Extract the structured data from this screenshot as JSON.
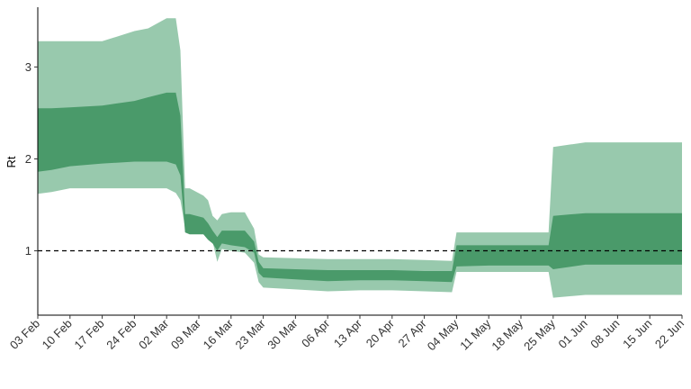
{
  "chart_data": {
    "type": "area",
    "title": "",
    "xlabel": "",
    "ylabel": "Rt",
    "ylim": [
      0.3,
      3.65
    ],
    "xlim": [
      "2020-02-03",
      "2020-06-22"
    ],
    "grid": false,
    "legend": "none",
    "y_ticks": [
      1,
      2,
      3
    ],
    "x_ticks": [
      "03 Feb",
      "10 Feb",
      "17 Feb",
      "24 Feb",
      "02 Mar",
      "09 Mar",
      "16 Mar",
      "23 Mar",
      "30 Mar",
      "06 Apr",
      "13 Apr",
      "20 Apr",
      "27 Apr",
      "04 May",
      "11 May",
      "18 May",
      "25 May",
      "01 Jun",
      "08 Jun",
      "15 Jun",
      "22 Jun"
    ],
    "x_tick_dates": [
      "2020-02-03",
      "2020-02-10",
      "2020-02-17",
      "2020-02-24",
      "2020-03-02",
      "2020-03-09",
      "2020-03-16",
      "2020-03-23",
      "2020-03-30",
      "2020-04-06",
      "2020-04-13",
      "2020-04-20",
      "2020-04-27",
      "2020-05-04",
      "2020-05-11",
      "2020-05-18",
      "2020-05-25",
      "2020-06-01",
      "2020-06-08",
      "2020-06-15",
      "2020-06-22"
    ],
    "reference_line": {
      "y": 1,
      "style": "dashed",
      "color": "#000000"
    },
    "colors": {
      "outer_band": "#98c9ad",
      "inner_band": "#4a9a6a"
    },
    "x": [
      "2020-02-03",
      "2020-02-06",
      "2020-02-10",
      "2020-02-17",
      "2020-02-24",
      "2020-02-27",
      "2020-03-02",
      "2020-03-04",
      "2020-03-05",
      "2020-03-06",
      "2020-03-07",
      "2020-03-10",
      "2020-03-11",
      "2020-03-12",
      "2020-03-13",
      "2020-03-14",
      "2020-03-16",
      "2020-03-19",
      "2020-03-21",
      "2020-03-22",
      "2020-03-23",
      "2020-03-30",
      "2020-04-06",
      "2020-04-13",
      "2020-04-20",
      "2020-04-27",
      "2020-05-03",
      "2020-05-04",
      "2020-05-11",
      "2020-05-18",
      "2020-05-24",
      "2020-05-25",
      "2020-06-01",
      "2020-06-08",
      "2020-06-15",
      "2020-06-22"
    ],
    "outer_lower": [
      1.62,
      1.64,
      1.68,
      1.68,
      1.68,
      1.68,
      1.68,
      1.63,
      1.55,
      1.25,
      1.22,
      1.22,
      1.15,
      1.1,
      0.88,
      1.02,
      1.0,
      0.98,
      0.87,
      0.66,
      0.6,
      0.58,
      0.56,
      0.57,
      0.57,
      0.56,
      0.55,
      0.77,
      0.77,
      0.77,
      0.77,
      0.49,
      0.52,
      0.52,
      0.52,
      0.52
    ],
    "inner_lower": [
      1.86,
      1.88,
      1.92,
      1.95,
      1.97,
      1.97,
      1.97,
      1.94,
      1.82,
      1.2,
      1.18,
      1.18,
      1.12,
      1.08,
      1.0,
      1.08,
      1.06,
      1.04,
      0.98,
      0.76,
      0.71,
      0.69,
      0.67,
      0.68,
      0.68,
      0.67,
      0.66,
      0.83,
      0.84,
      0.84,
      0.84,
      0.8,
      0.85,
      0.85,
      0.85,
      0.85
    ],
    "inner_upper": [
      2.55,
      2.55,
      2.56,
      2.58,
      2.63,
      2.67,
      2.72,
      2.72,
      2.47,
      1.4,
      1.4,
      1.36,
      1.3,
      1.22,
      1.15,
      1.22,
      1.22,
      1.22,
      1.1,
      0.88,
      0.81,
      0.8,
      0.79,
      0.79,
      0.79,
      0.78,
      0.78,
      1.06,
      1.06,
      1.06,
      1.06,
      1.38,
      1.41,
      1.41,
      1.41,
      1.41
    ],
    "outer_upper": [
      3.28,
      3.28,
      3.28,
      3.28,
      3.39,
      3.42,
      3.53,
      3.53,
      3.18,
      1.68,
      1.68,
      1.6,
      1.55,
      1.38,
      1.33,
      1.4,
      1.42,
      1.42,
      1.24,
      0.96,
      0.93,
      0.92,
      0.91,
      0.91,
      0.91,
      0.9,
      0.89,
      1.2,
      1.2,
      1.2,
      1.2,
      2.13,
      2.18,
      2.18,
      2.18,
      2.18
    ]
  }
}
